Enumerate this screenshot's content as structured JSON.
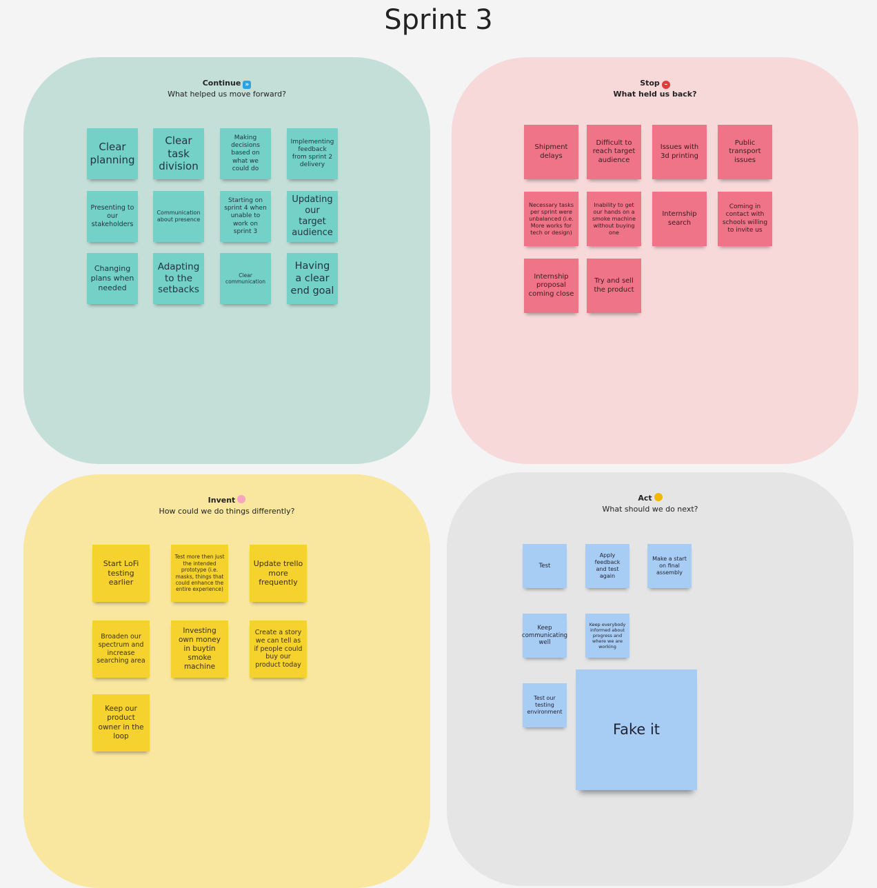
{
  "board": {
    "title": "Sprint 3"
  },
  "continue": {
    "title": "Continue",
    "subtitle": "What helped us move forward?",
    "icon": "fast-forward-icon",
    "color": "#73d1c8",
    "notes": [
      "Clear planning",
      "Clear task division",
      "Making decisions based on what we could do",
      "Implementing feedback from sprint 2 delivery",
      "Presenting to our stakeholders",
      "Communication about presence",
      "Starting on sprint 4 when unable to work on sprint 3",
      "Updating our target audience",
      "Changing plans when needed",
      "Adapting to the setbacks",
      "Clear communication",
      "Having a clear end goal"
    ]
  },
  "stop": {
    "title": "Stop",
    "subtitle": "What held us back?",
    "icon": "no-entry-icon",
    "color": "#f07488",
    "notes": [
      "Shipment delays",
      "Difficult to reach target audience",
      "Issues with 3d printing",
      "Public transport issues",
      "Necessary tasks per sprint were unbalanced (i.e. More works for tech or design)",
      "Inability to get our hands on a smoke machine without buying one",
      "Internship search",
      "Coming in contact with schools willing to invite us",
      "Internship proposal coming close",
      "Try and sell the product"
    ]
  },
  "invent": {
    "title": "Invent",
    "subtitle": "How could we do things differently?",
    "icon": "flower-icon",
    "color": "#f6d22e",
    "notes": [
      "Start LoFi testing earlier",
      "Test more then just the intended prototype (i.e. masks, things that could enhance the entire experience)",
      "Update trello more frequently",
      "Broaden our spectrum and increase searching area",
      "Investing own money in buytin smoke machine",
      "Create a story we can tell as if people could buy our product today",
      "Keep our product owner in the loop"
    ]
  },
  "act": {
    "title": "Act",
    "subtitle": "What should we do next?",
    "icon": "flexed-arm-icon",
    "color": "#a8cdf4",
    "notes": [
      "Test",
      "Apply feedback and test again",
      "Make a start on final assembly",
      "Keep communicating well",
      "Keep everybody informed about progress and where we are working",
      "Test our testing environment",
      "Fake it"
    ]
  }
}
